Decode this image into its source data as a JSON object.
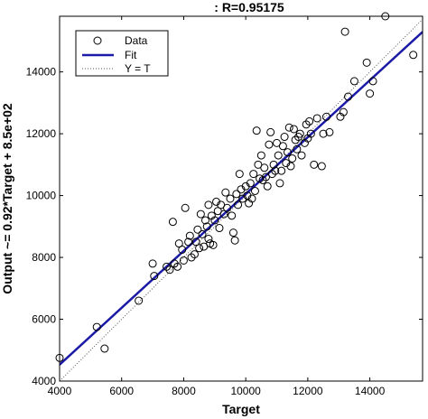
{
  "chart_data": {
    "type": "scatter",
    "title": ": R=0.95175",
    "xlabel": "Target",
    "ylabel": "Output ~= 0.92*Target + 8.5e+02",
    "xlim": [
      4000,
      15700
    ],
    "ylim": [
      4000,
      15800
    ],
    "xticks": [
      4000,
      6000,
      8000,
      10000,
      12000,
      14000
    ],
    "yticks": [
      4000,
      6000,
      8000,
      10000,
      12000,
      14000
    ],
    "grid": false,
    "legend_position": "top-left",
    "fit": {
      "slope": 0.92,
      "intercept": 850
    },
    "series": [
      {
        "name": "Data",
        "marker": "circle",
        "color": "#000000",
        "points": [
          [
            4000,
            4750
          ],
          [
            5200,
            5750
          ],
          [
            5450,
            5050
          ],
          [
            6550,
            6600
          ],
          [
            7000,
            7800
          ],
          [
            7050,
            7400
          ],
          [
            7450,
            7700
          ],
          [
            7550,
            7600
          ],
          [
            7650,
            9150
          ],
          [
            7700,
            7800
          ],
          [
            7800,
            7700
          ],
          [
            7850,
            8450
          ],
          [
            7950,
            8250
          ],
          [
            8000,
            7900
          ],
          [
            8050,
            9600
          ],
          [
            8150,
            8500
          ],
          [
            8200,
            8700
          ],
          [
            8250,
            8000
          ],
          [
            8350,
            8100
          ],
          [
            8400,
            8500
          ],
          [
            8450,
            8900
          ],
          [
            8500,
            8300
          ],
          [
            8550,
            9400
          ],
          [
            8600,
            8750
          ],
          [
            8650,
            8350
          ],
          [
            8700,
            9200
          ],
          [
            8750,
            9000
          ],
          [
            8800,
            8600
          ],
          [
            8800,
            9700
          ],
          [
            8850,
            8450
          ],
          [
            8900,
            9350
          ],
          [
            8950,
            8400
          ],
          [
            9000,
            9200
          ],
          [
            9050,
            9800
          ],
          [
            9100,
            9500
          ],
          [
            9150,
            8950
          ],
          [
            9200,
            9700
          ],
          [
            9300,
            9400
          ],
          [
            9350,
            10100
          ],
          [
            9400,
            9600
          ],
          [
            9500,
            9900
          ],
          [
            9550,
            9350
          ],
          [
            9600,
            8800
          ],
          [
            9650,
            8550
          ],
          [
            9700,
            10050
          ],
          [
            9750,
            9700
          ],
          [
            9800,
            10700
          ],
          [
            9850,
            10200
          ],
          [
            9900,
            9900
          ],
          [
            10000,
            10300
          ],
          [
            10050,
            10000
          ],
          [
            10100,
            9750
          ],
          [
            10150,
            10400
          ],
          [
            10200,
            9900
          ],
          [
            10250,
            10700
          ],
          [
            10300,
            10150
          ],
          [
            10350,
            12100
          ],
          [
            10400,
            11000
          ],
          [
            10450,
            10550
          ],
          [
            10500,
            11300
          ],
          [
            10550,
            10500
          ],
          [
            10600,
            10900
          ],
          [
            10650,
            10600
          ],
          [
            10700,
            10300
          ],
          [
            10750,
            11650
          ],
          [
            10800,
            12050
          ],
          [
            10850,
            10700
          ],
          [
            10900,
            11000
          ],
          [
            10950,
            10800
          ],
          [
            11000,
            11700
          ],
          [
            11050,
            11300
          ],
          [
            11100,
            10400
          ],
          [
            11150,
            10800
          ],
          [
            11200,
            11600
          ],
          [
            11250,
            11900
          ],
          [
            11300,
            11050
          ],
          [
            11350,
            11400
          ],
          [
            11400,
            12200
          ],
          [
            11450,
            10950
          ],
          [
            11500,
            11200
          ],
          [
            11550,
            12150
          ],
          [
            11600,
            11800
          ],
          [
            11650,
            11500
          ],
          [
            11700,
            11900
          ],
          [
            11750,
            12000
          ],
          [
            11800,
            11300
          ],
          [
            11900,
            11700
          ],
          [
            11950,
            12300
          ],
          [
            12000,
            11850
          ],
          [
            12050,
            12400
          ],
          [
            12100,
            12000
          ],
          [
            12200,
            11000
          ],
          [
            12300,
            12500
          ],
          [
            12450,
            10950
          ],
          [
            12500,
            12000
          ],
          [
            12600,
            12550
          ],
          [
            12700,
            12050
          ],
          [
            13050,
            12550
          ],
          [
            13150,
            12700
          ],
          [
            13200,
            15300
          ],
          [
            13300,
            13200
          ],
          [
            13500,
            13700
          ],
          [
            13900,
            14300
          ],
          [
            14000,
            13300
          ],
          [
            14100,
            13700
          ],
          [
            14500,
            15800
          ],
          [
            15400,
            14550
          ]
        ]
      },
      {
        "name": "Fit",
        "line": "solid",
        "color": "#1a1aa6"
      },
      {
        "name": "Y = T",
        "line": "dotted",
        "color": "#555555"
      }
    ]
  }
}
